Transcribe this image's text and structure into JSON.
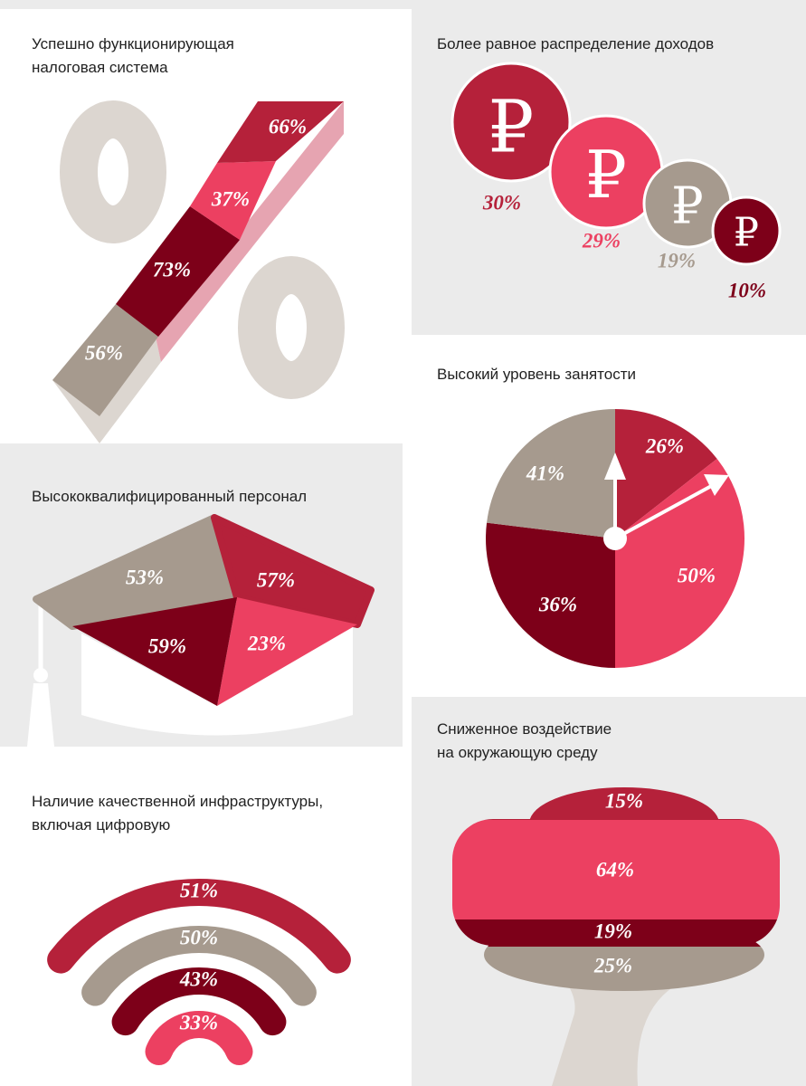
{
  "panels": [
    {
      "title": [
        "Успешно функционирующая",
        "налоговая система"
      ],
      "labels": [
        "66%",
        "37%",
        "73%",
        "56%"
      ]
    },
    {
      "title": [
        "Более равное распределение доходов"
      ],
      "symbol": "₽",
      "labels": [
        "30%",
        "29%",
        "19%",
        "10%"
      ]
    },
    {
      "title": [
        "Высокий уровень занятости"
      ],
      "labels": [
        "26%",
        "50%",
        "36%",
        "41%"
      ]
    },
    {
      "title": [
        "Высококвалифицированный персонал"
      ],
      "labels": [
        "53%",
        "57%",
        "59%",
        "23%"
      ]
    },
    {
      "title": [
        "Сниженное воздействие",
        "на окружающую среду"
      ],
      "labels": [
        "15%",
        "64%",
        "19%",
        "25%"
      ]
    },
    {
      "title": [
        "Наличие качественной инфраструктуры,",
        "включая цифровую"
      ],
      "labels": [
        "51%",
        "50%",
        "43%",
        "33%"
      ]
    }
  ]
}
